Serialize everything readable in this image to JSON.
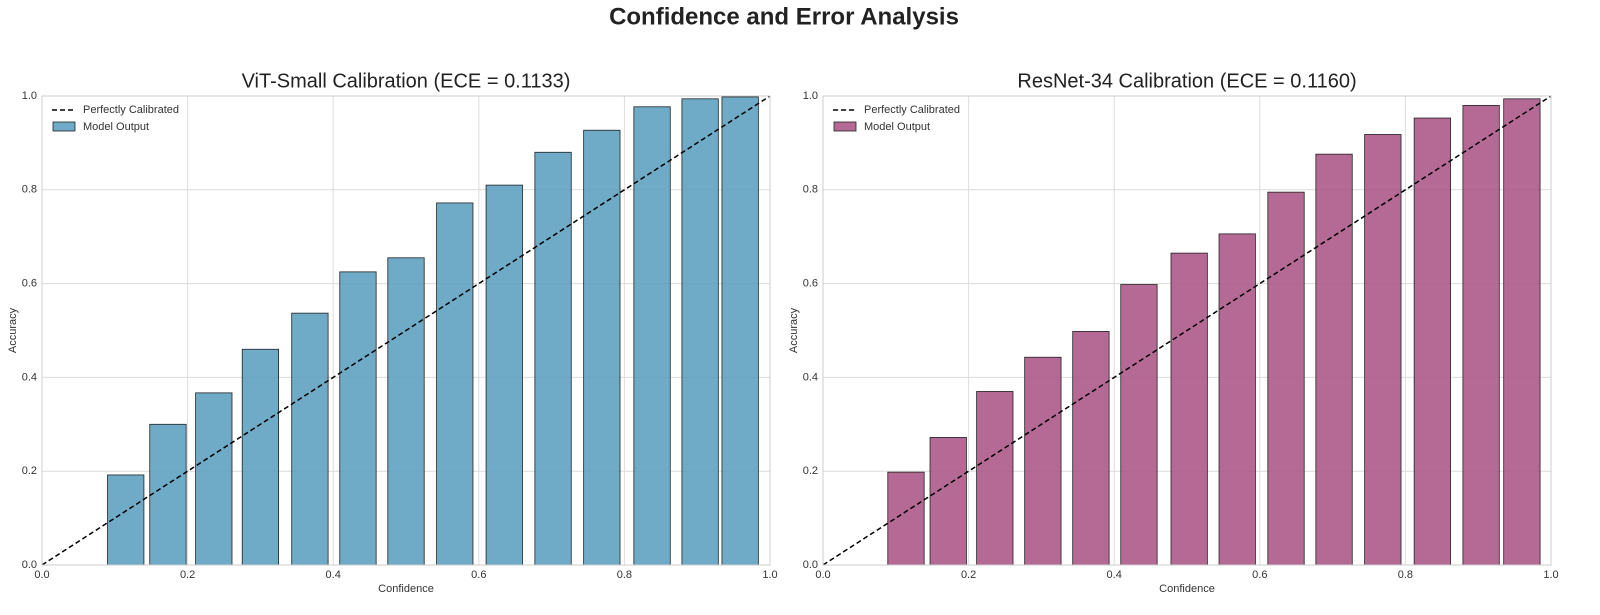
{
  "title": "Confidence and Error Analysis",
  "chart_data": [
    {
      "type": "bar",
      "title": "ViT-Small Calibration (ECE = 0.1133)",
      "xlabel": "Confidence",
      "ylabel": "Accuracy",
      "x": [
        0.062,
        0.115,
        0.173,
        0.236,
        0.3,
        0.368,
        0.434,
        0.5,
        0.567,
        0.635,
        0.702,
        0.769,
        0.838,
        0.904,
        0.959
      ],
      "series": [
        {
          "name": "Model Output",
          "color": "#5b9ebf",
          "values": [
            0,
            0.192,
            0.3,
            0.367,
            0.46,
            0.537,
            0.625,
            0.655,
            0.772,
            0.81,
            0.88,
            0.927,
            0.977,
            0.994,
            0.998
          ]
        }
      ],
      "diagonal": {
        "name": "Perfectly Calibrated",
        "x": [
          0,
          1
        ],
        "y": [
          0,
          1
        ]
      },
      "xlim": [
        0,
        1
      ],
      "ylim": [
        0,
        1
      ],
      "xticks": [
        {
          "value": 0,
          "label": "0.0"
        },
        0.2,
        0.4,
        0.6,
        0.8,
        {
          "value": 1,
          "label": "1.0"
        }
      ],
      "yticks": [
        {
          "value": 0,
          "label": "0.0"
        },
        0.2,
        0.4,
        0.6,
        0.8,
        {
          "value": 1,
          "label": "1.0"
        }
      ],
      "grid": true,
      "legend": "upper left"
    },
    {
      "type": "bar",
      "title": "ResNet-34 Calibration (ECE = 0.1160)",
      "xlabel": "Confidence",
      "ylabel": "Accuracy",
      "x": [
        0.059,
        0.114,
        0.172,
        0.236,
        0.302,
        0.368,
        0.434,
        0.503,
        0.569,
        0.636,
        0.702,
        0.769,
        0.837,
        0.904,
        0.96
      ],
      "series": [
        {
          "name": "Model Output",
          "color": "#ab5587",
          "values": [
            0,
            0.198,
            0.272,
            0.37,
            0.443,
            0.498,
            0.598,
            0.665,
            0.706,
            0.795,
            0.876,
            0.918,
            0.953,
            0.98,
            0.994
          ]
        }
      ],
      "diagonal": {
        "name": "Perfectly Calibrated",
        "x": [
          0,
          1
        ],
        "y": [
          0,
          1
        ]
      },
      "xlim": [
        0,
        1
      ],
      "ylim": [
        0,
        1
      ],
      "xticks": [
        {
          "value": 0,
          "label": "0.0"
        },
        0.2,
        0.4,
        0.6,
        0.8,
        {
          "value": 1,
          "label": "1.0"
        }
      ],
      "yticks": [
        {
          "value": 0,
          "label": "0.0"
        },
        0.2,
        0.4,
        0.6,
        0.8,
        {
          "value": 1,
          "label": "1.0"
        }
      ],
      "grid": true,
      "legend": "upper left"
    }
  ]
}
